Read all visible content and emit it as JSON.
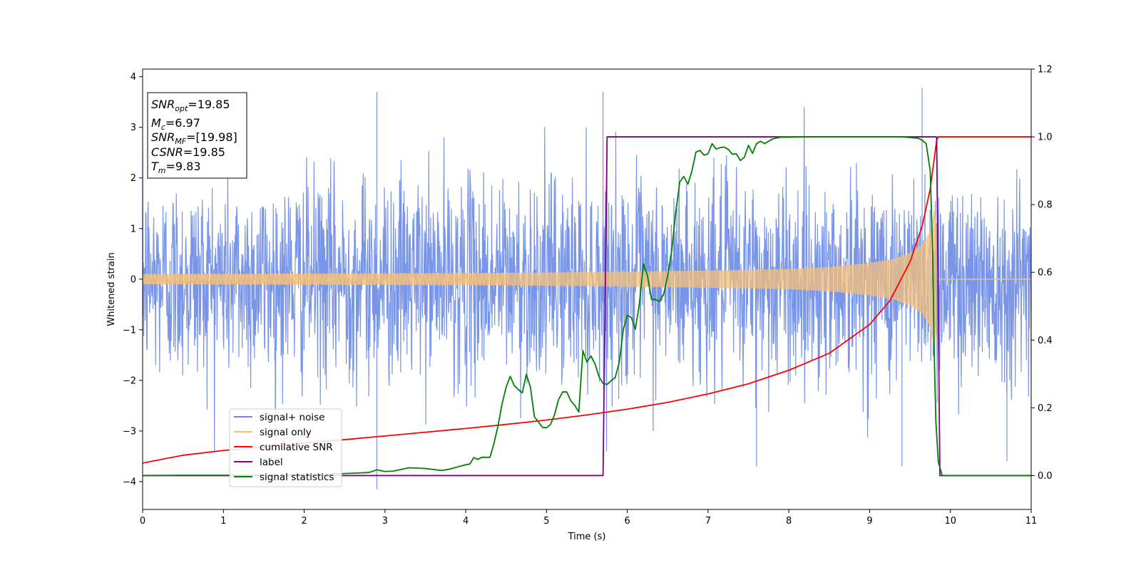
{
  "chart_data": {
    "type": "line",
    "xlabel": "Time (s)",
    "ylabel": "Whitened strain",
    "xlim": [
      0,
      11
    ],
    "ylim": [
      -4.55,
      4.15
    ],
    "y2lim": [
      -0.1,
      1.2
    ],
    "x_ticks": [
      0,
      1,
      2,
      3,
      4,
      5,
      6,
      7,
      8,
      9,
      10,
      11
    ],
    "y_ticks": [
      -4,
      -3,
      -2,
      -1,
      0,
      1,
      2,
      3,
      4
    ],
    "y2_ticks": [
      0.0,
      0.2,
      0.4,
      0.6,
      0.8,
      1.0,
      1.2
    ],
    "grid": false,
    "legend_position": "lower-left",
    "info_box": {
      "snr_opt": {
        "base": "SNR",
        "sub": "opt",
        "value": "=19.85"
      },
      "mc": {
        "base": "M",
        "sub": "c",
        "value": "=6.97"
      },
      "snr_mf": {
        "base": "SNR",
        "sub": "MF",
        "value": "=[19.98]"
      },
      "csnr": {
        "base": "CSNR",
        "value": "=19.85"
      },
      "tm": {
        "base": "T",
        "sub": "m",
        "value": "=9.83"
      }
    },
    "series": [
      {
        "name": "signal+ noise",
        "color": "#6a89e6",
        "axis": "left",
        "style": "noise band",
        "typical_range": [
          -2.5,
          2.5
        ],
        "peaks": [
          [
            2.9,
            3.7
          ],
          [
            5.7,
            3.7
          ],
          [
            9.65,
            3.78
          ],
          [
            2.9,
            -4.15
          ],
          [
            7.6,
            -3.7
          ],
          [
            9.4,
            -3.7
          ],
          [
            10.7,
            -3.6
          ]
        ]
      },
      {
        "name": "signal only",
        "color": "#f5c07a",
        "axis": "left",
        "style": "chirp envelope",
        "envelope": {
          "x": [
            0,
            2,
            4,
            5,
            6,
            7,
            8,
            8.5,
            9,
            9.3,
            9.5,
            9.65,
            9.75,
            9.8,
            9.83
          ],
          "amp": [
            0.1,
            0.11,
            0.12,
            0.13,
            0.15,
            0.17,
            0.2,
            0.24,
            0.32,
            0.4,
            0.52,
            0.68,
            0.95,
            1.4,
            1.05
          ]
        },
        "after_merger": 0.0
      },
      {
        "name": "cumilative SNR",
        "color": "#ff0000",
        "axis": "right",
        "x": [
          0,
          0.5,
          1,
          1.5,
          2,
          2.5,
          3,
          3.5,
          4,
          4.5,
          5,
          5.5,
          6,
          6.5,
          7,
          7.5,
          8,
          8.5,
          9,
          9.25,
          9.5,
          9.65,
          9.75,
          9.83,
          9.85,
          10,
          10.5,
          11
        ],
        "y": [
          0.037,
          0.06,
          0.074,
          0.085,
          0.096,
          0.106,
          0.117,
          0.128,
          0.139,
          0.151,
          0.164,
          0.179,
          0.196,
          0.216,
          0.241,
          0.271,
          0.311,
          0.361,
          0.446,
          0.516,
          0.631,
          0.736,
          0.846,
          0.99,
          1.0,
          1.0,
          1.0,
          1.0
        ]
      },
      {
        "name": "label",
        "color": "#800080",
        "axis": "right",
        "x": [
          0,
          5.7,
          5.75,
          9.83,
          9.87,
          11
        ],
        "y": [
          0,
          0,
          1,
          1,
          0,
          0
        ]
      },
      {
        "name": "signal statistics",
        "color": "#008000",
        "axis": "right",
        "x": [
          0,
          0.5,
          1,
          1.5,
          2,
          2.5,
          2.8,
          2.9,
          3.0,
          3.1,
          3.3,
          3.5,
          3.7,
          3.8,
          4.0,
          4.05,
          4.1,
          4.15,
          4.2,
          4.3,
          4.35,
          4.4,
          4.45,
          4.5,
          4.55,
          4.6,
          4.65,
          4.7,
          4.75,
          4.8,
          4.85,
          4.9,
          4.95,
          5.0,
          5.05,
          5.1,
          5.15,
          5.2,
          5.25,
          5.3,
          5.35,
          5.4,
          5.45,
          5.5,
          5.55,
          5.6,
          5.65,
          5.7,
          5.75,
          5.8,
          5.85,
          5.9,
          5.95,
          6.0,
          6.05,
          6.1,
          6.15,
          6.2,
          6.25,
          6.3,
          6.35,
          6.4,
          6.45,
          6.5,
          6.55,
          6.6,
          6.65,
          6.7,
          6.75,
          6.8,
          6.85,
          6.9,
          6.95,
          7.0,
          7.05,
          7.1,
          7.15,
          7.2,
          7.25,
          7.3,
          7.35,
          7.4,
          7.45,
          7.5,
          7.55,
          7.6,
          7.65,
          7.7,
          7.8,
          7.9,
          8.0,
          8.2,
          8.5,
          8.8,
          9.0,
          9.2,
          9.4,
          9.6,
          9.65,
          9.7,
          9.75,
          9.78,
          9.8,
          9.82,
          9.85,
          9.9,
          10,
          10.5,
          11
        ],
        "y": [
          0.0,
          0.001,
          0.001,
          0.001,
          0.002,
          0.006,
          0.009,
          0.017,
          0.012,
          0.013,
          0.023,
          0.021,
          0.015,
          0.019,
          0.032,
          0.034,
          0.053,
          0.048,
          0.054,
          0.054,
          0.095,
          0.147,
          0.212,
          0.261,
          0.293,
          0.266,
          0.254,
          0.244,
          0.299,
          0.262,
          0.174,
          0.158,
          0.142,
          0.141,
          0.151,
          0.18,
          0.225,
          0.247,
          0.247,
          0.221,
          0.207,
          0.188,
          0.369,
          0.335,
          0.353,
          0.33,
          0.292,
          0.272,
          0.269,
          0.28,
          0.289,
          0.334,
          0.43,
          0.473,
          0.467,
          0.432,
          0.508,
          0.625,
          0.59,
          0.52,
          0.52,
          0.514,
          0.535,
          0.589,
          0.664,
          0.778,
          0.867,
          0.883,
          0.86,
          0.899,
          0.955,
          0.96,
          0.946,
          0.95,
          0.98,
          0.964,
          0.968,
          0.97,
          0.963,
          0.949,
          0.95,
          0.93,
          0.94,
          0.975,
          0.951,
          0.98,
          0.987,
          0.98,
          0.994,
          0.999,
          0.999,
          1.0,
          1.0,
          1.0,
          1.0,
          1.0,
          1.0,
          0.996,
          0.99,
          0.98,
          0.9,
          0.66,
          0.36,
          0.16,
          0.04,
          0.0,
          0.0,
          0.0,
          0.0
        ]
      }
    ]
  }
}
